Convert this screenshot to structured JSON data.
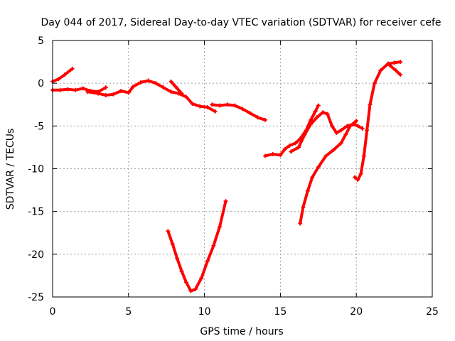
{
  "chart_data": {
    "type": "scatter",
    "title": "Day 044 of 2017, Sidereal Day-to-day VTEC variation (SDTVAR) for receiver cefe",
    "xlabel": "GPS time / hours",
    "ylabel": "SDTVAR / TECUs",
    "xlim": [
      0,
      25
    ],
    "ylim": [
      -25,
      5
    ],
    "xticks": [
      0,
      5,
      10,
      15,
      20,
      25
    ],
    "yticks": [
      5,
      0,
      -5,
      -10,
      -15,
      -20,
      -25
    ],
    "grid": true,
    "marker": "plus",
    "color": "#ff0000",
    "series": [
      {
        "name": "segment-1",
        "points": [
          [
            0.0,
            0.2
          ],
          [
            0.4,
            0.5
          ],
          [
            0.8,
            1.0
          ],
          [
            1.3,
            1.7
          ]
        ]
      },
      {
        "name": "segment-2",
        "points": [
          [
            0.0,
            -0.8
          ],
          [
            0.5,
            -0.8
          ],
          [
            1.0,
            -0.7
          ],
          [
            1.5,
            -0.8
          ],
          [
            2.0,
            -0.6
          ],
          [
            2.5,
            -0.9
          ],
          [
            3.0,
            -1.0
          ],
          [
            3.5,
            -0.5
          ]
        ]
      },
      {
        "name": "segment-3",
        "points": [
          [
            2.3,
            -1.0
          ],
          [
            3.0,
            -1.2
          ],
          [
            3.5,
            -1.4
          ],
          [
            4.0,
            -1.3
          ],
          [
            4.5,
            -0.9
          ],
          [
            5.0,
            -1.1
          ],
          [
            5.3,
            -0.4
          ],
          [
            5.8,
            0.1
          ],
          [
            6.3,
            0.3
          ],
          [
            6.8,
            0.0
          ],
          [
            7.3,
            -0.5
          ],
          [
            7.8,
            -1.0
          ],
          [
            8.3,
            -1.2
          ],
          [
            8.8,
            -1.6
          ],
          [
            9.2,
            -2.4
          ],
          [
            9.7,
            -2.7
          ],
          [
            10.2,
            -2.8
          ],
          [
            10.7,
            -3.3
          ]
        ]
      },
      {
        "name": "segment-4",
        "points": [
          [
            7.8,
            0.2
          ],
          [
            8.1,
            -0.4
          ],
          [
            8.5,
            -1.2
          ]
        ]
      },
      {
        "name": "segment-5",
        "points": [
          [
            10.5,
            -2.5
          ],
          [
            11.0,
            -2.6
          ],
          [
            11.5,
            -2.5
          ],
          [
            12.0,
            -2.6
          ],
          [
            12.5,
            -3.0
          ],
          [
            13.0,
            -3.5
          ],
          [
            13.5,
            -4.0
          ],
          [
            14.0,
            -4.3
          ]
        ]
      },
      {
        "name": "segment-6",
        "points": [
          [
            7.6,
            -17.3
          ],
          [
            7.9,
            -18.8
          ],
          [
            8.2,
            -20.5
          ],
          [
            8.5,
            -22.0
          ],
          [
            8.8,
            -23.3
          ],
          [
            9.1,
            -24.3
          ],
          [
            9.4,
            -24.1
          ],
          [
            9.8,
            -22.8
          ],
          [
            10.2,
            -20.8
          ],
          [
            10.6,
            -19.0
          ],
          [
            11.0,
            -16.8
          ],
          [
            11.4,
            -13.8
          ]
        ]
      },
      {
        "name": "segment-7",
        "points": [
          [
            14.0,
            -8.5
          ],
          [
            14.5,
            -8.3
          ],
          [
            15.0,
            -8.4
          ],
          [
            15.3,
            -7.7
          ],
          [
            15.6,
            -7.3
          ],
          [
            16.0,
            -7.0
          ],
          [
            16.3,
            -6.5
          ],
          [
            16.7,
            -5.5
          ],
          [
            17.0,
            -4.3
          ],
          [
            17.3,
            -3.3
          ],
          [
            17.5,
            -2.6
          ]
        ]
      },
      {
        "name": "segment-8",
        "points": [
          [
            15.7,
            -8.0
          ],
          [
            16.2,
            -7.5
          ],
          [
            16.6,
            -6.0
          ],
          [
            17.0,
            -4.8
          ],
          [
            17.4,
            -4.0
          ],
          [
            17.8,
            -3.4
          ],
          [
            18.1,
            -3.6
          ],
          [
            18.4,
            -5.0
          ],
          [
            18.7,
            -5.8
          ],
          [
            19.0,
            -5.5
          ],
          [
            19.4,
            -5.0
          ],
          [
            19.8,
            -4.8
          ],
          [
            20.1,
            -5.0
          ],
          [
            20.4,
            -5.3
          ]
        ]
      },
      {
        "name": "segment-9",
        "points": [
          [
            16.3,
            -16.4
          ],
          [
            16.5,
            -14.5
          ],
          [
            16.8,
            -12.6
          ],
          [
            17.1,
            -11.0
          ],
          [
            17.5,
            -9.8
          ],
          [
            18.0,
            -8.5
          ],
          [
            18.5,
            -7.8
          ],
          [
            19.0,
            -7.0
          ],
          [
            19.3,
            -6.0
          ],
          [
            19.6,
            -5.0
          ],
          [
            20.0,
            -4.4
          ]
        ]
      },
      {
        "name": "segment-10",
        "points": [
          [
            19.9,
            -11.0
          ],
          [
            20.1,
            -11.3
          ],
          [
            20.3,
            -10.6
          ],
          [
            20.5,
            -8.5
          ],
          [
            20.7,
            -5.5
          ],
          [
            20.9,
            -2.5
          ],
          [
            21.2,
            0.0
          ],
          [
            21.6,
            1.5
          ],
          [
            22.1,
            2.3
          ],
          [
            22.5,
            2.4
          ],
          [
            22.9,
            2.5
          ]
        ]
      },
      {
        "name": "segment-11",
        "points": [
          [
            22.2,
            2.1
          ],
          [
            22.6,
            1.5
          ],
          [
            22.9,
            1.0
          ]
        ]
      }
    ]
  }
}
